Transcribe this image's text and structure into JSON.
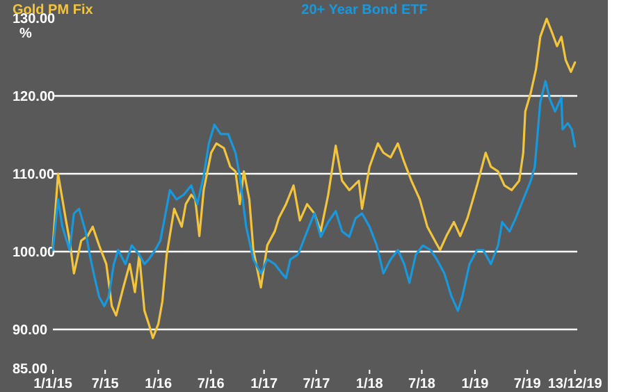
{
  "chart_data": {
    "type": "line",
    "ylabel": "%",
    "legend": "top",
    "grid": "y",
    "line_style": "solid",
    "marker": "none",
    "xlim": [
      "2015-01-01",
      "2019-12-21"
    ],
    "ylim": [
      85,
      130
    ],
    "yticks": [
      {
        "value": 85,
        "label": "85.00"
      },
      {
        "value": 90,
        "label": "90.00"
      },
      {
        "value": 100,
        "label": "100.00"
      },
      {
        "value": 110,
        "label": "110.00"
      },
      {
        "value": 120,
        "label": "120.00"
      },
      {
        "value": 130,
        "label": "130.00"
      }
    ],
    "xticks": [
      {
        "value": "2015-01-01",
        "label": "1/1/15"
      },
      {
        "value": "2015-07-01",
        "label": "7/15"
      },
      {
        "value": "2016-01-01",
        "label": "1/16"
      },
      {
        "value": "2016-07-01",
        "label": "7/16"
      },
      {
        "value": "2017-01-01",
        "label": "1/17"
      },
      {
        "value": "2017-07-01",
        "label": "7/17"
      },
      {
        "value": "2018-01-01",
        "label": "1/18"
      },
      {
        "value": "2018-07-01",
        "label": "7/18"
      },
      {
        "value": "2019-01-01",
        "label": "1/19"
      },
      {
        "value": "2019-07-01",
        "label": "7/19"
      },
      {
        "value": "2019-12-13",
        "label": "13/12/19"
      }
    ],
    "series": [
      {
        "name": "Gold PM Fix",
        "color": "#f2c53d",
        "x": [
          "2015-01-01",
          "2015-01-19",
          "2015-02-14",
          "2015-02-28",
          "2015-03-15",
          "2015-04-09",
          "2015-05-01",
          "2015-05-19",
          "2015-06-10",
          "2015-07-05",
          "2015-07-24",
          "2015-08-08",
          "2015-09-02",
          "2015-09-24",
          "2015-10-12",
          "2015-10-27",
          "2015-11-14",
          "2015-11-29",
          "2015-12-13",
          "2016-01-01",
          "2016-01-15",
          "2016-01-30",
          "2016-02-25",
          "2016-03-22",
          "2016-04-05",
          "2016-04-24",
          "2016-05-08",
          "2016-05-22",
          "2016-06-06",
          "2016-07-02",
          "2016-07-20",
          "2016-08-15",
          "2016-09-06",
          "2016-09-24",
          "2016-10-09",
          "2016-10-23",
          "2016-11-11",
          "2016-11-25",
          "2016-12-21",
          "2017-01-12",
          "2017-02-07",
          "2017-02-21",
          "2017-03-18",
          "2017-04-13",
          "2017-05-05",
          "2017-05-30",
          "2017-06-24",
          "2017-07-16",
          "2017-08-11",
          "2017-09-06",
          "2017-09-28",
          "2017-10-23",
          "2017-11-25",
          "2017-12-06",
          "2018-01-01",
          "2018-01-30",
          "2018-02-18",
          "2018-03-15",
          "2018-04-09",
          "2018-05-01",
          "2018-05-26",
          "2018-06-24",
          "2018-07-20",
          "2018-08-15",
          "2018-09-02",
          "2018-09-24",
          "2018-10-20",
          "2018-11-11",
          "2018-12-06",
          "2019-01-08",
          "2019-02-07",
          "2019-02-25",
          "2019-03-22",
          "2019-04-13",
          "2019-05-08",
          "2019-06-03",
          "2019-06-17",
          "2019-06-24",
          "2019-07-13",
          "2019-07-31",
          "2019-08-15",
          "2019-09-06",
          "2019-09-24",
          "2019-10-12",
          "2019-10-27",
          "2019-11-11",
          "2019-11-29",
          "2019-12-13"
        ],
        "values": [
          100.8,
          110,
          104.3,
          101.4,
          97.2,
          101.4,
          102,
          103.2,
          100.8,
          98.4,
          93,
          91.8,
          95.4,
          98.4,
          94.8,
          99.6,
          92.4,
          90.7,
          88.9,
          90.7,
          93.6,
          99.6,
          105.5,
          103.2,
          106.1,
          107.3,
          106.7,
          102,
          107.9,
          112.7,
          113.9,
          113.3,
          110.9,
          110.3,
          106.1,
          110.3,
          106.7,
          100.2,
          95.4,
          100.8,
          102.6,
          104.3,
          106.1,
          108.5,
          104,
          106.1,
          104.9,
          102.6,
          107.3,
          113.6,
          109.1,
          107.9,
          109.1,
          105.5,
          110.9,
          113.9,
          112.7,
          112.1,
          113.9,
          111.5,
          109.1,
          106.7,
          103.2,
          101.4,
          100.2,
          102,
          103.8,
          102,
          104.3,
          108.5,
          112.7,
          110.9,
          110.3,
          108.5,
          107.9,
          109.1,
          112.7,
          118,
          120.4,
          123.4,
          127.6,
          129.9,
          128.2,
          126.4,
          127.6,
          124.6,
          123.1,
          124.3
        ]
      },
      {
        "name": "20+ Year Bond ETF",
        "color": "#1a98dc",
        "x": [
          "2015-01-01",
          "2015-01-19",
          "2015-02-03",
          "2015-02-28",
          "2015-03-15",
          "2015-04-02",
          "2015-04-24",
          "2015-05-12",
          "2015-05-26",
          "2015-06-10",
          "2015-06-28",
          "2015-07-13",
          "2015-07-31",
          "2015-08-15",
          "2015-09-09",
          "2015-10-01",
          "2015-10-27",
          "2015-11-14",
          "2015-11-29",
          "2015-12-21",
          "2016-01-08",
          "2016-01-23",
          "2016-02-10",
          "2016-03-04",
          "2016-03-29",
          "2016-04-24",
          "2016-05-15",
          "2016-06-06",
          "2016-06-24",
          "2016-07-13",
          "2016-08-04",
          "2016-08-30",
          "2016-09-24",
          "2016-10-09",
          "2016-10-31",
          "2016-11-25",
          "2016-12-21",
          "2017-01-12",
          "2017-02-07",
          "2017-03-04",
          "2017-03-18",
          "2017-04-02",
          "2017-04-27",
          "2017-05-05",
          "2017-05-30",
          "2017-06-24",
          "2017-07-16",
          "2017-08-11",
          "2017-09-06",
          "2017-09-28",
          "2017-10-23",
          "2017-11-14",
          "2017-12-06",
          "2018-01-01",
          "2018-01-26",
          "2018-02-18",
          "2018-03-15",
          "2018-04-09",
          "2018-05-01",
          "2018-05-19",
          "2018-06-10",
          "2018-07-05",
          "2018-07-31",
          "2018-08-22",
          "2018-09-17",
          "2018-10-12",
          "2018-11-03",
          "2018-11-18",
          "2018-12-13",
          "2019-01-08",
          "2019-01-30",
          "2019-02-25",
          "2019-03-22",
          "2019-04-05",
          "2019-05-01",
          "2019-05-22",
          "2019-06-17",
          "2019-07-13",
          "2019-07-27",
          "2019-08-15",
          "2019-09-02",
          "2019-09-17",
          "2019-10-05",
          "2019-10-27",
          "2019-10-31",
          "2019-11-18",
          "2019-12-02",
          "2019-12-13"
        ],
        "values": [
          100.2,
          106.7,
          103.2,
          100.2,
          104.9,
          105.5,
          102.6,
          99,
          96.6,
          94.2,
          93,
          94.2,
          98.4,
          100.2,
          98.4,
          100.8,
          99.6,
          98.4,
          99,
          100.2,
          101.4,
          104.3,
          107.9,
          106.7,
          107.3,
          108.5,
          106.1,
          109.7,
          113.9,
          116.3,
          115.1,
          115.1,
          112.7,
          109.7,
          103.2,
          99,
          97.2,
          99,
          98.4,
          97.2,
          96.6,
          99,
          99.6,
          100.2,
          102.6,
          104.9,
          101.9,
          103.8,
          105.2,
          102.6,
          101.9,
          104.3,
          104.9,
          103.2,
          100.8,
          97.2,
          99,
          100.2,
          98.4,
          96,
          99.6,
          100.8,
          100.2,
          99,
          97.2,
          94.2,
          92.4,
          94.2,
          98.4,
          100.2,
          100.2,
          98.4,
          100.8,
          103.8,
          102.6,
          104.3,
          106.7,
          109.1,
          110.9,
          119.2,
          121.9,
          119.6,
          118,
          119.8,
          115.7,
          116.5,
          115.7,
          113.5
        ]
      }
    ]
  }
}
